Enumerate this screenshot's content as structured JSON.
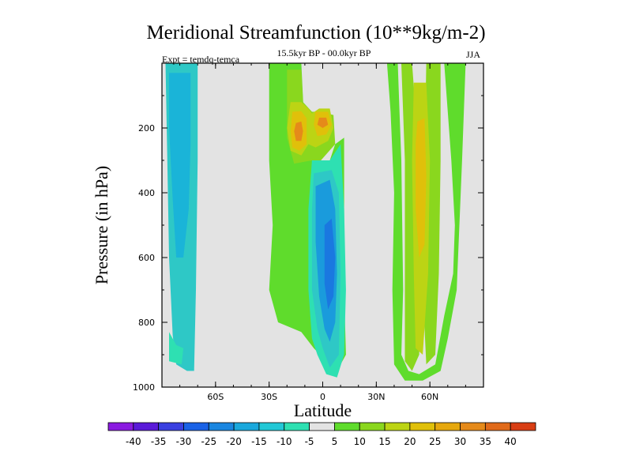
{
  "title": "Meridional Streamfunction (10**9kg/m-2)",
  "subtitle": "15.5kyr BP - 00.0kyr BP",
  "left_label": "Expt = temdq-temca",
  "right_label": "JJA",
  "chart_data": {
    "type": "contour",
    "xlabel": "Latitude",
    "ylabel": "Pressure (in hPa)",
    "xlim": [
      -90,
      90
    ],
    "ylim": [
      1000,
      0
    ],
    "x_ticks": [
      {
        "value": -60,
        "label": "60S"
      },
      {
        "value": -30,
        "label": "30S"
      },
      {
        "value": 0,
        "label": "0"
      },
      {
        "value": 30,
        "label": "30N"
      },
      {
        "value": 60,
        "label": "60N"
      }
    ],
    "y_ticks": [
      {
        "value": 200,
        "label": "200"
      },
      {
        "value": 400,
        "label": "400"
      },
      {
        "value": 600,
        "label": "600"
      },
      {
        "value": 800,
        "label": "800"
      },
      {
        "value": 1000,
        "label": "1000"
      }
    ],
    "background_color": "#e3e3e3",
    "contour_regions": [
      {
        "name": "southern-high-lat-negative",
        "level": -10,
        "color": "#2ec8c6",
        "points": [
          [
            -88,
            0
          ],
          [
            -70,
            0
          ],
          [
            -70,
            300
          ],
          [
            -71,
            700
          ],
          [
            -72,
            950
          ],
          [
            -76,
            950
          ],
          [
            -82,
            930
          ],
          [
            -84,
            840
          ],
          [
            -86,
            600
          ],
          [
            -87,
            300
          ]
        ]
      },
      {
        "name": "southern-high-lat-core",
        "level": -15,
        "color": "#1ab4d8",
        "points": [
          [
            -86,
            30
          ],
          [
            -74,
            30
          ],
          [
            -74,
            250
          ],
          [
            -75,
            450
          ],
          [
            -78,
            600
          ],
          [
            -82,
            600
          ],
          [
            -84,
            420
          ],
          [
            -86,
            200
          ]
        ]
      },
      {
        "name": "southern-band-light",
        "level": -5,
        "color": "#2ee0b2",
        "points": [
          [
            -86,
            830
          ],
          [
            -82,
            870
          ],
          [
            -78,
            880
          ],
          [
            -79,
            930
          ],
          [
            -86,
            920
          ]
        ]
      },
      {
        "name": "tropical-positive-outer",
        "level": 5,
        "color": "#5fdc2c",
        "points": [
          [
            -30,
            0
          ],
          [
            -12,
            0
          ],
          [
            -10,
            230
          ],
          [
            -5,
            300
          ],
          [
            4,
            300
          ],
          [
            7,
            250
          ],
          [
            12,
            230
          ],
          [
            12,
            700
          ],
          [
            13,
            900
          ],
          [
            8,
            950
          ],
          [
            2,
            920
          ],
          [
            -5,
            880
          ],
          [
            -12,
            830
          ],
          [
            -25,
            800
          ],
          [
            -30,
            700
          ],
          [
            -28,
            500
          ],
          [
            -30,
            300
          ]
        ]
      },
      {
        "name": "tropical-positive-10",
        "level": 10,
        "color": "#8ad71e",
        "points": [
          [
            -20,
            20
          ],
          [
            -12,
            20
          ],
          [
            -11,
            120
          ],
          [
            -6,
            150
          ],
          [
            -1,
            150
          ],
          [
            6,
            160
          ],
          [
            7,
            250
          ],
          [
            -1,
            300
          ],
          [
            -6,
            300
          ],
          [
            -16,
            310
          ],
          [
            -20,
            230
          ]
        ]
      },
      {
        "name": "tropical-positive-15",
        "level": 15,
        "color": "#bcd414",
        "points": [
          [
            -18,
            120
          ],
          [
            -12,
            120
          ],
          [
            -8,
            140
          ],
          [
            -6,
            155
          ],
          [
            -2,
            140
          ],
          [
            4,
            140
          ],
          [
            6,
            200
          ],
          [
            3,
            240
          ],
          [
            -4,
            260
          ],
          [
            -8,
            250
          ],
          [
            -12,
            285
          ],
          [
            -18,
            270
          ],
          [
            -20,
            200
          ]
        ]
      },
      {
        "name": "tropical-positive-20",
        "level": 20,
        "color": "#e0c00a",
        "points": [
          [
            -17,
            150
          ],
          [
            -12,
            148
          ],
          [
            -9,
            170
          ],
          [
            -9,
            250
          ],
          [
            -13,
            270
          ],
          [
            -17,
            260
          ],
          [
            -18,
            210
          ]
        ]
      },
      {
        "name": "tropical-positive-25b",
        "level": 20,
        "color": "#e0c00a",
        "points": [
          [
            -4,
            150
          ],
          [
            3,
            150
          ],
          [
            5,
            190
          ],
          [
            2,
            220
          ],
          [
            -3,
            225
          ],
          [
            -5,
            190
          ]
        ]
      },
      {
        "name": "tropical-positive-30",
        "level": 30,
        "color": "#e58a1a",
        "points": [
          [
            -15,
            185
          ],
          [
            -12,
            180
          ],
          [
            -11,
            210
          ],
          [
            -12,
            240
          ],
          [
            -15,
            240
          ],
          [
            -16,
            210
          ]
        ]
      },
      {
        "name": "tropical-positive-30b",
        "level": 30,
        "color": "#e58a1a",
        "points": [
          [
            -2,
            168
          ],
          [
            2,
            168
          ],
          [
            3,
            190
          ],
          [
            0,
            200
          ],
          [
            -3,
            190
          ]
        ]
      },
      {
        "name": "tropical-negative-outer",
        "level": -5,
        "color": "#2ee0b2",
        "points": [
          [
            -6,
            300
          ],
          [
            4,
            300
          ],
          [
            10,
            250
          ],
          [
            12,
            450
          ],
          [
            13,
            700
          ],
          [
            12,
            900
          ],
          [
            8,
            970
          ],
          [
            2,
            960
          ],
          [
            -3,
            900
          ],
          [
            -6,
            850
          ],
          [
            -8,
            700
          ],
          [
            -8,
            450
          ]
        ]
      },
      {
        "name": "tropical-negative-10",
        "level": -10,
        "color": "#2ec8c6",
        "points": [
          [
            -5,
            340
          ],
          [
            5,
            330
          ],
          [
            9,
            400
          ],
          [
            10,
            650
          ],
          [
            9,
            900
          ],
          [
            4,
            940
          ],
          [
            0,
            880
          ],
          [
            -3,
            820
          ],
          [
            -6,
            700
          ],
          [
            -6,
            450
          ]
        ]
      },
      {
        "name": "tropical-negative-20",
        "level": -20,
        "color": "#1a9bdc",
        "points": [
          [
            -4,
            380
          ],
          [
            4,
            360
          ],
          [
            7,
            450
          ],
          [
            8,
            650
          ],
          [
            7,
            800
          ],
          [
            4,
            860
          ],
          [
            1,
            820
          ],
          [
            -2,
            720
          ],
          [
            -4,
            550
          ]
        ]
      },
      {
        "name": "tropical-negative-25",
        "level": -25,
        "color": "#1a78e0",
        "points": [
          [
            1,
            500
          ],
          [
            5,
            480
          ],
          [
            7,
            600
          ],
          [
            6,
            720
          ],
          [
            3,
            760
          ],
          [
            1,
            680
          ]
        ]
      },
      {
        "name": "northern-positive-outer",
        "level": 5,
        "color": "#5fdc2c",
        "points": [
          [
            36,
            0
          ],
          [
            42,
            0
          ],
          [
            43,
            150
          ],
          [
            44,
            300
          ],
          [
            45,
            700
          ],
          [
            44,
            900
          ],
          [
            48,
            950
          ],
          [
            54,
            960
          ],
          [
            63,
            930
          ],
          [
            68,
            780
          ],
          [
            73,
            650
          ],
          [
            74,
            500
          ],
          [
            72,
            300
          ],
          [
            68,
            0
          ],
          [
            80,
            0
          ],
          [
            78,
            300
          ],
          [
            75,
            700
          ],
          [
            70,
            850
          ],
          [
            66,
            950
          ],
          [
            56,
            980
          ],
          [
            46,
            980
          ],
          [
            40,
            930
          ],
          [
            39,
            700
          ],
          [
            40,
            400
          ],
          [
            38,
            150
          ]
        ]
      },
      {
        "name": "northern-positive-10",
        "level": 10,
        "color": "#8ad71e",
        "points": [
          [
            44,
            0
          ],
          [
            50,
            0
          ],
          [
            52,
            150
          ],
          [
            54,
            350
          ],
          [
            55,
            650
          ],
          [
            54,
            900
          ],
          [
            50,
            950
          ],
          [
            46,
            920
          ],
          [
            46,
            700
          ],
          [
            46,
            300
          ]
        ]
      },
      {
        "name": "northern-positive-10b",
        "level": 10,
        "color": "#8ad71e",
        "points": [
          [
            58,
            0
          ],
          [
            66,
            0
          ],
          [
            66,
            300
          ],
          [
            65,
            650
          ],
          [
            63,
            900
          ],
          [
            58,
            930
          ],
          [
            56,
            700
          ],
          [
            57,
            300
          ]
        ]
      },
      {
        "name": "northern-positive-15",
        "level": 15,
        "color": "#bcd414",
        "points": [
          [
            51,
            60
          ],
          [
            58,
            60
          ],
          [
            60,
            300
          ],
          [
            59,
            650
          ],
          [
            56,
            900
          ],
          [
            52,
            880
          ],
          [
            51,
            650
          ],
          [
            50,
            300
          ]
        ]
      },
      {
        "name": "northern-positive-20",
        "level": 20,
        "color": "#e0c00a",
        "points": [
          [
            53,
            180
          ],
          [
            57,
            170
          ],
          [
            58,
            350
          ],
          [
            57,
            560
          ],
          [
            54,
            600
          ],
          [
            52,
            450
          ],
          [
            52,
            250
          ]
        ]
      }
    ],
    "colorbar": {
      "labels": [
        "-40",
        "-35",
        "-30",
        "-25",
        "-20",
        "-15",
        "-10",
        "-5",
        "5",
        "10",
        "15",
        "20",
        "25",
        "30",
        "35",
        "40"
      ],
      "colors": [
        "#8a1ae0",
        "#5a1ad8",
        "#3a40e0",
        "#1a62e6",
        "#1a86e0",
        "#1aa8dc",
        "#22c8d6",
        "#2ee0b2",
        "#e3e3e3",
        "#5fdc2c",
        "#8ad71e",
        "#bcd414",
        "#e0c00a",
        "#e6a80e",
        "#e58a1a",
        "#e06a1a",
        "#d83e14"
      ]
    }
  }
}
